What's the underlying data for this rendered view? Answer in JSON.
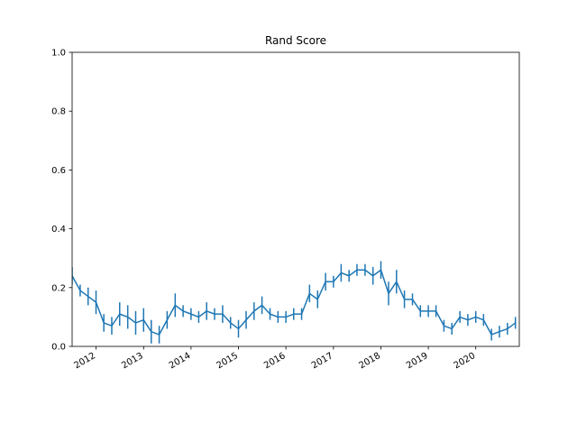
{
  "chart_data": {
    "type": "line",
    "title": "Rand Score",
    "xlabel": "",
    "ylabel": "",
    "ylim": [
      0.0,
      1.0
    ],
    "xlim": [
      "2011-07-01",
      "2020-12-01"
    ],
    "y_ticks": [
      "0.0",
      "0.2",
      "0.4",
      "0.6",
      "0.8",
      "1.0"
    ],
    "x_ticks": [
      {
        "date": "2012-01-01",
        "label": "2012"
      },
      {
        "date": "2013-01-01",
        "label": "2013"
      },
      {
        "date": "2014-01-01",
        "label": "2014"
      },
      {
        "date": "2015-01-01",
        "label": "2015"
      },
      {
        "date": "2016-01-01",
        "label": "2016"
      },
      {
        "date": "2017-01-01",
        "label": "2017"
      },
      {
        "date": "2018-01-01",
        "label": "2018"
      },
      {
        "date": "2019-01-01",
        "label": "2019"
      },
      {
        "date": "2020-01-01",
        "label": "2020"
      }
    ],
    "grid": false,
    "legend": "none",
    "color": "#1f77b4",
    "series": [
      {
        "x": [
          "2011-07-01",
          "2011-09-01",
          "2011-11-01",
          "2012-01-01",
          "2012-03-01",
          "2012-05-01",
          "2012-07-01",
          "2012-09-01",
          "2012-11-01",
          "2013-01-01",
          "2013-03-01",
          "2013-05-01",
          "2013-07-01",
          "2013-09-01",
          "2013-11-01",
          "2014-01-01",
          "2014-03-01",
          "2014-05-01",
          "2014-07-01",
          "2014-09-01",
          "2014-11-01",
          "2015-01-01",
          "2015-03-01",
          "2015-05-01",
          "2015-07-01",
          "2015-09-01",
          "2015-11-01",
          "2016-01-01",
          "2016-03-01",
          "2016-05-01",
          "2016-07-01",
          "2016-09-01",
          "2016-11-01",
          "2017-01-01",
          "2017-03-01",
          "2017-05-01",
          "2017-07-01",
          "2017-09-01",
          "2017-11-01",
          "2018-01-01",
          "2018-03-01",
          "2018-05-01",
          "2018-07-01",
          "2018-09-01",
          "2018-11-01",
          "2019-01-01",
          "2019-03-01",
          "2019-05-01",
          "2019-07-01",
          "2019-09-01",
          "2019-11-01",
          "2020-01-01",
          "2020-03-01",
          "2020-05-01",
          "2020-07-01",
          "2020-09-01",
          "2020-11-01"
        ],
        "y": [
          0.24,
          0.19,
          0.17,
          0.15,
          0.08,
          0.07,
          0.11,
          0.1,
          0.08,
          0.09,
          0.05,
          0.04,
          0.09,
          0.14,
          0.12,
          0.11,
          0.1,
          0.12,
          0.11,
          0.11,
          0.08,
          0.06,
          0.09,
          0.12,
          0.14,
          0.11,
          0.1,
          0.1,
          0.11,
          0.11,
          0.18,
          0.16,
          0.22,
          0.22,
          0.25,
          0.24,
          0.26,
          0.26,
          0.24,
          0.26,
          0.18,
          0.22,
          0.16,
          0.16,
          0.12,
          0.12,
          0.12,
          0.07,
          0.06,
          0.1,
          0.09,
          0.1,
          0.09,
          0.04,
          0.05,
          0.06,
          0.08
        ],
        "yerr": [
          0.03,
          0.02,
          0.03,
          0.04,
          0.03,
          0.03,
          0.04,
          0.04,
          0.04,
          0.04,
          0.04,
          0.03,
          0.03,
          0.04,
          0.02,
          0.02,
          0.02,
          0.03,
          0.02,
          0.03,
          0.02,
          0.03,
          0.03,
          0.03,
          0.03,
          0.02,
          0.02,
          0.02,
          0.02,
          0.02,
          0.03,
          0.03,
          0.03,
          0.02,
          0.03,
          0.02,
          0.02,
          0.02,
          0.03,
          0.03,
          0.04,
          0.04,
          0.03,
          0.02,
          0.02,
          0.02,
          0.02,
          0.02,
          0.02,
          0.02,
          0.02,
          0.02,
          0.02,
          0.02,
          0.02,
          0.02,
          0.02
        ]
      }
    ]
  }
}
